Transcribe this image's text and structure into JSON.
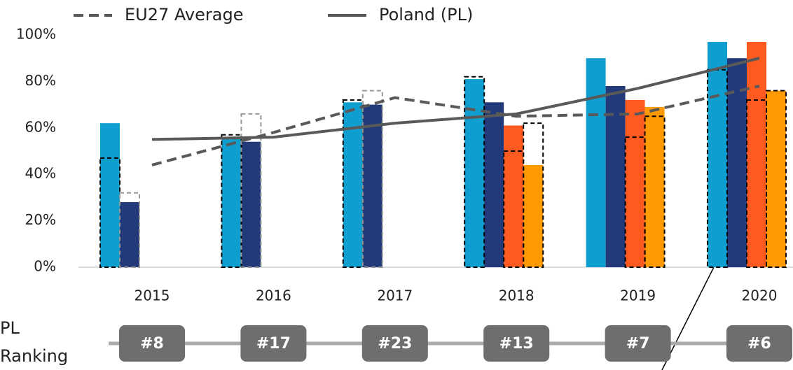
{
  "chart_data": {
    "type": "bar",
    "categories": [
      "2015",
      "2016",
      "2017",
      "2018",
      "2019",
      "2020"
    ],
    "ylim": [
      0,
      100
    ],
    "yticks": [
      {
        "value": 0,
        "label": "0%"
      },
      {
        "value": 20,
        "label": "20%"
      },
      {
        "value": 40,
        "label": "40%"
      },
      {
        "value": 60,
        "label": "60%"
      },
      {
        "value": 80,
        "label": "80%"
      },
      {
        "value": 100,
        "label": "100%"
      }
    ],
    "series": [
      {
        "color": "#0e9fd0",
        "values": [
          62,
          56,
          71,
          81,
          90,
          97
        ]
      },
      {
        "color": "#233a7a",
        "values": [
          28,
          54,
          70,
          71,
          78,
          90
        ]
      },
      {
        "color": "#ff5a1f",
        "values": [
          null,
          null,
          null,
          61,
          72,
          97
        ]
      },
      {
        "color": "#ff9a00",
        "values": [
          null,
          null,
          null,
          44,
          69,
          76
        ]
      }
    ],
    "benchmark_series": [
      {
        "color": "#000000",
        "values": [
          47,
          57,
          72,
          82,
          null,
          85
        ]
      },
      {
        "color": "#999999",
        "values": [
          32,
          66,
          76,
          null,
          null,
          null
        ]
      },
      {
        "color": "#000000",
        "values": [
          null,
          null,
          null,
          50,
          56,
          72
        ]
      },
      {
        "color": "#000000",
        "values": [
          null,
          null,
          null,
          62,
          65,
          76
        ]
      }
    ],
    "lines": [
      {
        "name": "EU27 Average",
        "color": "#595959",
        "dashed": true,
        "values": [
          44,
          58,
          73,
          65,
          66,
          78
        ]
      },
      {
        "name": "Poland (PL)",
        "color": "#595959",
        "dashed": false,
        "values": [
          55,
          56,
          62,
          66,
          77,
          90
        ]
      }
    ],
    "ranking_label": [
      "PL",
      "Ranking"
    ],
    "rankings": [
      "#8",
      "#17",
      "#23",
      "#13",
      "#7",
      "#6"
    ]
  }
}
